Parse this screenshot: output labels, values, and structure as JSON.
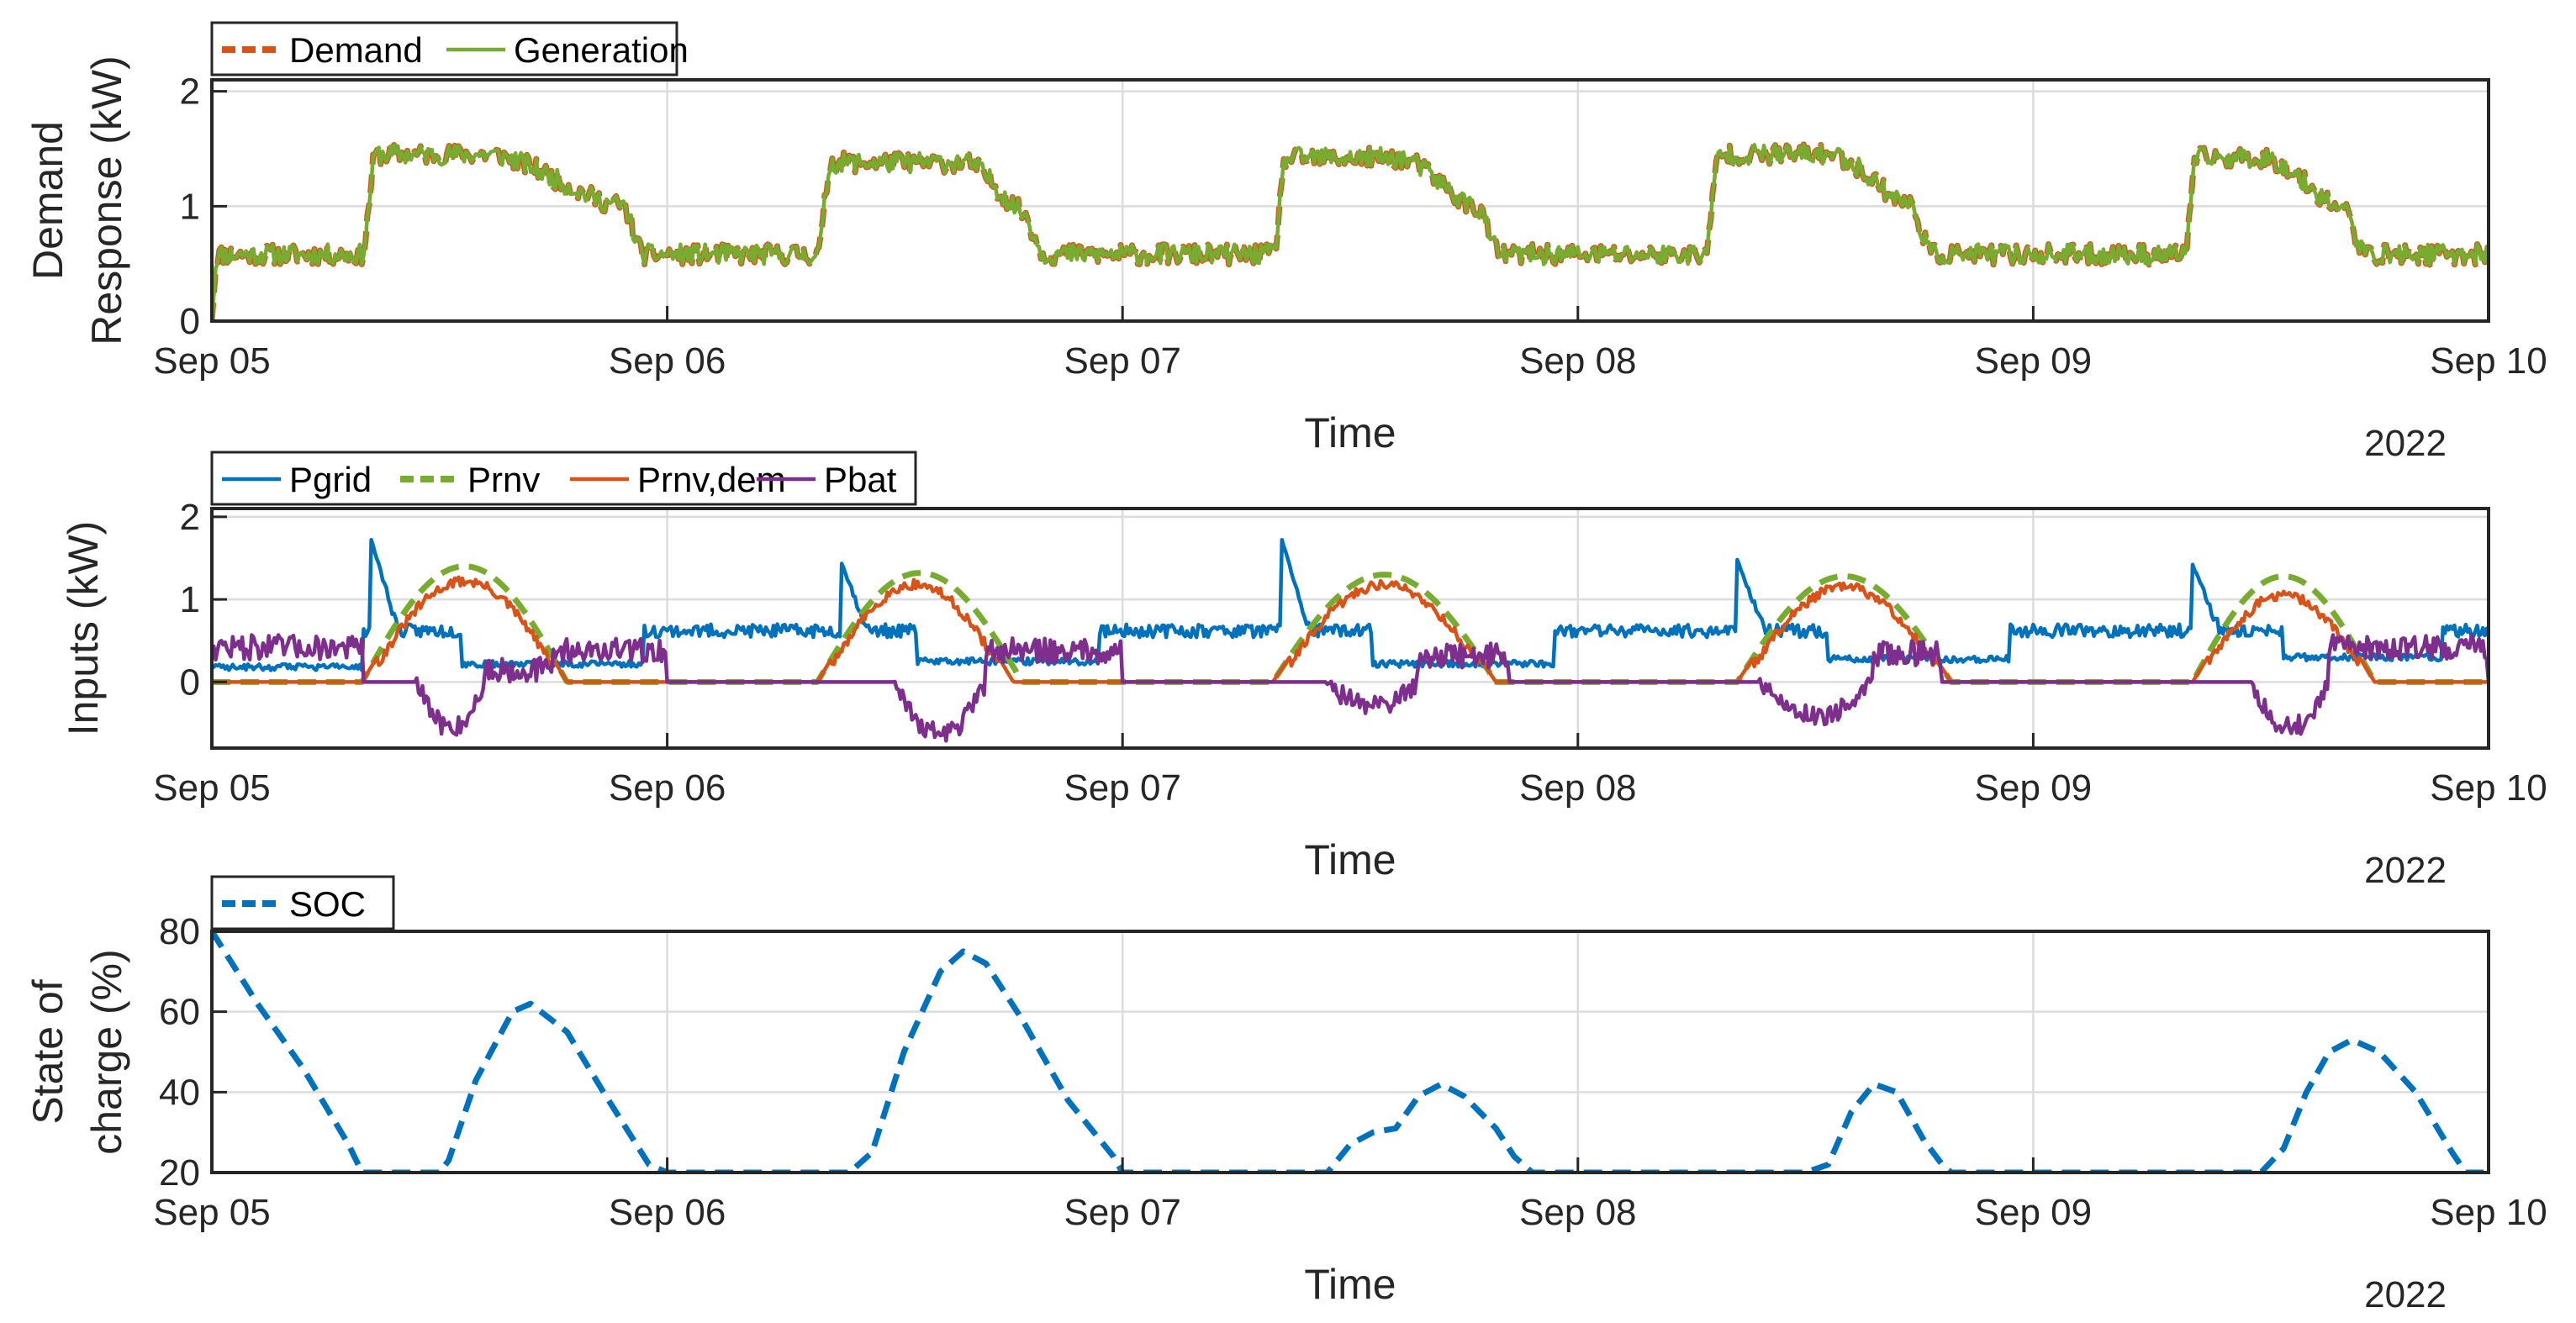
{
  "figure": {
    "background": "#ffffff",
    "axis_color": "#262626",
    "grid_color": "#dcdcdc"
  },
  "chart_data": [
    {
      "type": "line",
      "id": "demand",
      "title": "",
      "xlabel": "Time",
      "ylabel_lines": [
        "Demand",
        "Response (kW)"
      ],
      "x_tick_labels": [
        "Sep 05",
        "Sep 06",
        "Sep 07",
        "Sep 08",
        "Sep 09",
        "Sep 10"
      ],
      "x_secondary_label": "2022",
      "xlim_days": [
        0,
        5
      ],
      "ylim": [
        0,
        2.1
      ],
      "yticks": [
        0,
        1,
        2
      ],
      "grid": true,
      "legend_placement": "top-left-outside",
      "series": [
        {
          "name": "Demand",
          "color": "#D95319",
          "dashed": true,
          "shape": {
            "base": 0.58,
            "noise": 0.09,
            "seed": 11,
            "start": 0.0,
            "bumps": [
              [
                0.35,
                0.6,
                0.92,
                1.45
              ],
              [
                1.35,
                1.65,
                1.8,
                1.38
              ],
              [
                2.35,
                2.6,
                2.8,
                1.42
              ],
              [
                3.3,
                3.55,
                3.75,
                1.45
              ],
              [
                4.35,
                4.5,
                4.7,
                1.42
              ]
            ]
          }
        },
        {
          "name": "Generation",
          "color": "#77AC30",
          "dashed": false,
          "shape": {
            "base": 0.58,
            "noise": 0.09,
            "seed": 11,
            "start": 0.0,
            "bumps": [
              [
                0.35,
                0.6,
                0.92,
                1.45
              ],
              [
                1.35,
                1.65,
                1.8,
                1.38
              ],
              [
                2.35,
                2.6,
                2.8,
                1.42
              ],
              [
                3.3,
                3.55,
                3.75,
                1.45
              ],
              [
                4.35,
                4.5,
                4.7,
                1.42
              ]
            ]
          }
        }
      ]
    },
    {
      "type": "line",
      "id": "inputs",
      "title": "",
      "xlabel": "Time",
      "ylabel_lines": [
        "Inputs (kW)"
      ],
      "x_tick_labels": [
        "Sep 05",
        "Sep 06",
        "Sep 07",
        "Sep 08",
        "Sep 09",
        "Sep 10"
      ],
      "x_secondary_label": "2022",
      "xlim_days": [
        0,
        5
      ],
      "ylim": [
        -0.8,
        2.1
      ],
      "yticks": [
        0,
        1,
        2
      ],
      "grid": true,
      "legend_placement": "top-left-outside",
      "series": [
        {
          "name": "Pgrid",
          "color": "#0072BD",
          "dashed": false,
          "shape": {
            "base": 0.62,
            "noise": 0.08,
            "seed": 23,
            "segments": [
              [
                0.0,
                0.33,
                0.18
              ],
              [
                0.55,
                0.95,
                0.22
              ],
              [
                1.55,
                1.95,
                0.25
              ],
              [
                2.55,
                2.95,
                0.22
              ],
              [
                3.55,
                3.95,
                0.28
              ],
              [
                4.55,
                4.9,
                0.3
              ]
            ],
            "spikes": [
              [
                0.35,
                1.72
              ],
              [
                1.38,
                1.48
              ],
              [
                2.35,
                1.72
              ],
              [
                3.35,
                1.48
              ],
              [
                4.35,
                1.42
              ]
            ]
          }
        },
        {
          "name": "Prnv",
          "color": "#77AC30",
          "dashed": true,
          "shape": {
            "solar": [
              [
                0.33,
                0.78,
                1.4
              ],
              [
                1.33,
                1.78,
                1.32
              ],
              [
                2.33,
                2.82,
                1.3
              ],
              [
                3.35,
                3.82,
                1.28
              ],
              [
                4.35,
                4.75,
                1.28
              ]
            ]
          }
        },
        {
          "name": "Prnv,dem",
          "color": "#D95319",
          "dashed": false,
          "shape": {
            "solar": [
              [
                0.33,
                0.78,
                1.32
              ],
              [
                1.33,
                1.76,
                1.28
              ],
              [
                2.33,
                2.82,
                1.28
              ],
              [
                3.35,
                3.82,
                1.25
              ],
              [
                4.35,
                4.75,
                1.15
              ]
            ],
            "noise": 0.06,
            "seed": 31
          }
        },
        {
          "name": "Pbat",
          "color": "#7E2F8E",
          "dashed": false,
          "shape": {
            "seed": 47,
            "levels": [
              [
                0.0,
                0.33,
                0.42
              ],
              [
                0.33,
                0.45,
                0.0
              ],
              [
                0.45,
                0.6,
                -0.55
              ],
              [
                0.6,
                0.75,
                0.15
              ],
              [
                0.75,
                1.0,
                0.38
              ],
              [
                1.0,
                1.35,
                0.0
              ],
              [
                1.35,
                1.5,
                0.0
              ],
              [
                1.5,
                1.7,
                -0.62
              ],
              [
                1.7,
                2.0,
                0.38
              ],
              [
                2.0,
                2.45,
                0.0
              ],
              [
                2.45,
                2.65,
                -0.28
              ],
              [
                2.65,
                2.85,
                0.32
              ],
              [
                2.85,
                3.4,
                0.0
              ],
              [
                3.4,
                3.65,
                -0.4
              ],
              [
                3.65,
                3.8,
                0.35
              ],
              [
                3.8,
                4.48,
                0.0
              ],
              [
                4.48,
                4.65,
                -0.55
              ],
              [
                4.65,
                5.0,
                0.42
              ]
            ]
          }
        }
      ]
    },
    {
      "type": "line",
      "id": "soc",
      "title": "",
      "xlabel": "Time",
      "ylabel_lines": [
        "State of",
        "charge (%)"
      ],
      "x_tick_labels": [
        "Sep 05",
        "Sep 06",
        "Sep 07",
        "Sep 08",
        "Sep 09",
        "Sep 10"
      ],
      "x_secondary_label": "2022",
      "xlim_days": [
        0,
        5
      ],
      "ylim": [
        20,
        80
      ],
      "yticks": [
        20,
        40,
        60,
        80
      ],
      "grid": true,
      "legend_placement": "top-left-outside",
      "series": [
        {
          "name": "SOC",
          "color": "#0072BD",
          "dashed": true,
          "points": [
            [
              0.0,
              80
            ],
            [
              0.1,
              62
            ],
            [
              0.2,
              46
            ],
            [
              0.3,
              27
            ],
            [
              0.33,
              20
            ],
            [
              0.5,
              20
            ],
            [
              0.52,
              23
            ],
            [
              0.58,
              43
            ],
            [
              0.66,
              60
            ],
            [
              0.7,
              62
            ],
            [
              0.78,
              55
            ],
            [
              0.86,
              40
            ],
            [
              0.96,
              22
            ],
            [
              1.0,
              20
            ],
            [
              1.4,
              20
            ],
            [
              1.45,
              25
            ],
            [
              1.52,
              50
            ],
            [
              1.6,
              70
            ],
            [
              1.65,
              75
            ],
            [
              1.7,
              72
            ],
            [
              1.78,
              58
            ],
            [
              1.88,
              38
            ],
            [
              1.98,
              24
            ],
            [
              2.0,
              20
            ],
            [
              2.45,
              20
            ],
            [
              2.5,
              27
            ],
            [
              2.55,
              30
            ],
            [
              2.6,
              31
            ],
            [
              2.65,
              39
            ],
            [
              2.7,
              42
            ],
            [
              2.75,
              39
            ],
            [
              2.82,
              31
            ],
            [
              2.86,
              24
            ],
            [
              2.9,
              20
            ],
            [
              3.5,
              20
            ],
            [
              3.55,
              22
            ],
            [
              3.6,
              35
            ],
            [
              3.65,
              42
            ],
            [
              3.7,
              40
            ],
            [
              3.76,
              28
            ],
            [
              3.8,
              22
            ],
            [
              3.82,
              20
            ],
            [
              4.5,
              20
            ],
            [
              4.55,
              26
            ],
            [
              4.6,
              40
            ],
            [
              4.65,
              50
            ],
            [
              4.7,
              53
            ],
            [
              4.76,
              50
            ],
            [
              4.84,
              40
            ],
            [
              4.92,
              25
            ],
            [
              4.95,
              20
            ],
            [
              5.0,
              20
            ]
          ]
        }
      ]
    }
  ]
}
